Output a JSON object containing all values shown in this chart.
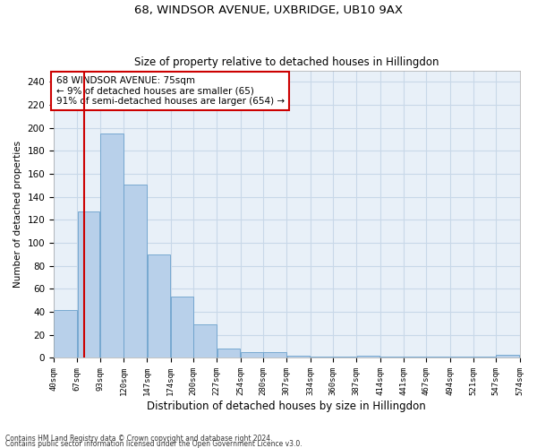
{
  "title1": "68, WINDSOR AVENUE, UXBRIDGE, UB10 9AX",
  "title2": "Size of property relative to detached houses in Hillingdon",
  "xlabel": "Distribution of detached houses by size in Hillingdon",
  "ylabel": "Number of detached properties",
  "footnote1": "Contains HM Land Registry data © Crown copyright and database right 2024.",
  "footnote2": "Contains public sector information licensed under the Open Government Licence v3.0.",
  "annotation_line1": "68 WINDSOR AVENUE: 75sqm",
  "annotation_line2": "← 9% of detached houses are smaller (65)",
  "annotation_line3": "91% of semi-detached houses are larger (654) →",
  "property_size": 75,
  "bar_left_edges": [
    40,
    67,
    93,
    120,
    147,
    174,
    200,
    227,
    254,
    280,
    307,
    334,
    360,
    387,
    414,
    441,
    467,
    494,
    521,
    547
  ],
  "bar_widths": [
    27,
    26,
    27,
    27,
    27,
    26,
    27,
    27,
    26,
    27,
    27,
    26,
    27,
    27,
    27,
    26,
    27,
    27,
    26,
    27
  ],
  "bar_heights": [
    42,
    127,
    195,
    151,
    90,
    53,
    29,
    8,
    5,
    5,
    2,
    1,
    1,
    2,
    1,
    1,
    1,
    1,
    1,
    3
  ],
  "tick_labels": [
    "40sqm",
    "67sqm",
    "93sqm",
    "120sqm",
    "147sqm",
    "174sqm",
    "200sqm",
    "227sqm",
    "254sqm",
    "280sqm",
    "307sqm",
    "334sqm",
    "360sqm",
    "387sqm",
    "414sqm",
    "441sqm",
    "467sqm",
    "494sqm",
    "521sqm",
    "547sqm",
    "574sqm"
  ],
  "bar_color": "#b8d0ea",
  "bar_edge_color": "#6aa0cc",
  "red_line_color": "#cc0000",
  "annotation_box_color": "#cc0000",
  "grid_color": "#c8d8e8",
  "bg_color": "#e8f0f8",
  "fig_bg_color": "#ffffff",
  "ylim": [
    0,
    250
  ],
  "yticks": [
    0,
    20,
    40,
    60,
    80,
    100,
    120,
    140,
    160,
    180,
    200,
    220,
    240
  ],
  "title1_fontsize": 9.5,
  "title2_fontsize": 8.5,
  "xlabel_fontsize": 8.5,
  "ylabel_fontsize": 7.5,
  "tick_fontsize": 6.5,
  "ytick_fontsize": 7.5,
  "footnote_fontsize": 5.5,
  "annotation_fontsize": 7.5
}
